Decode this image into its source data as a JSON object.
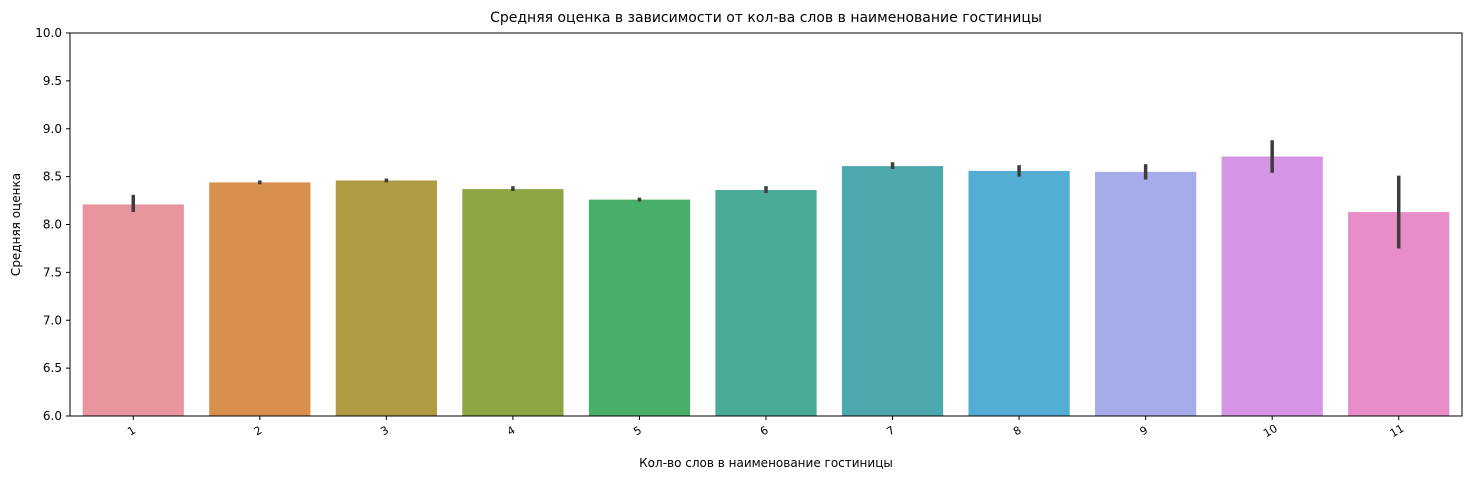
{
  "chart_data": {
    "type": "bar",
    "title": "Средняя оценка в зависимости от кол-ва слов в наименование гостиницы",
    "xlabel": "Кол-во слов в наименование гостиницы",
    "ylabel": "Средняя оценка",
    "categories": [
      "1",
      "2",
      "3",
      "4",
      "5",
      "6",
      "7",
      "8",
      "9",
      "10",
      "11"
    ],
    "values": [
      8.21,
      8.44,
      8.46,
      8.37,
      8.26,
      8.36,
      8.61,
      8.56,
      8.55,
      8.71,
      8.13
    ],
    "error_low": [
      8.13,
      8.42,
      8.44,
      8.35,
      8.24,
      8.33,
      8.58,
      8.5,
      8.47,
      8.54,
      7.75
    ],
    "error_high": [
      8.31,
      8.46,
      8.48,
      8.4,
      8.28,
      8.4,
      8.65,
      8.62,
      8.63,
      8.88,
      8.51
    ],
    "colors": [
      "#e8959f",
      "#da904d",
      "#b09b45",
      "#8ea543",
      "#48af68",
      "#4aaa98",
      "#4da9ad",
      "#53add4",
      "#a6acea",
      "#d694e5",
      "#e88dc9"
    ],
    "error_color": "#3d3d3d",
    "ylim": [
      6.0,
      10.0
    ],
    "yticks": [
      "6.0",
      "6.5",
      "7.0",
      "7.5",
      "8.0",
      "8.5",
      "9.0",
      "9.5",
      "10.0"
    ],
    "xtick_rotation_deg": 30,
    "grid": false,
    "legend": false
  }
}
